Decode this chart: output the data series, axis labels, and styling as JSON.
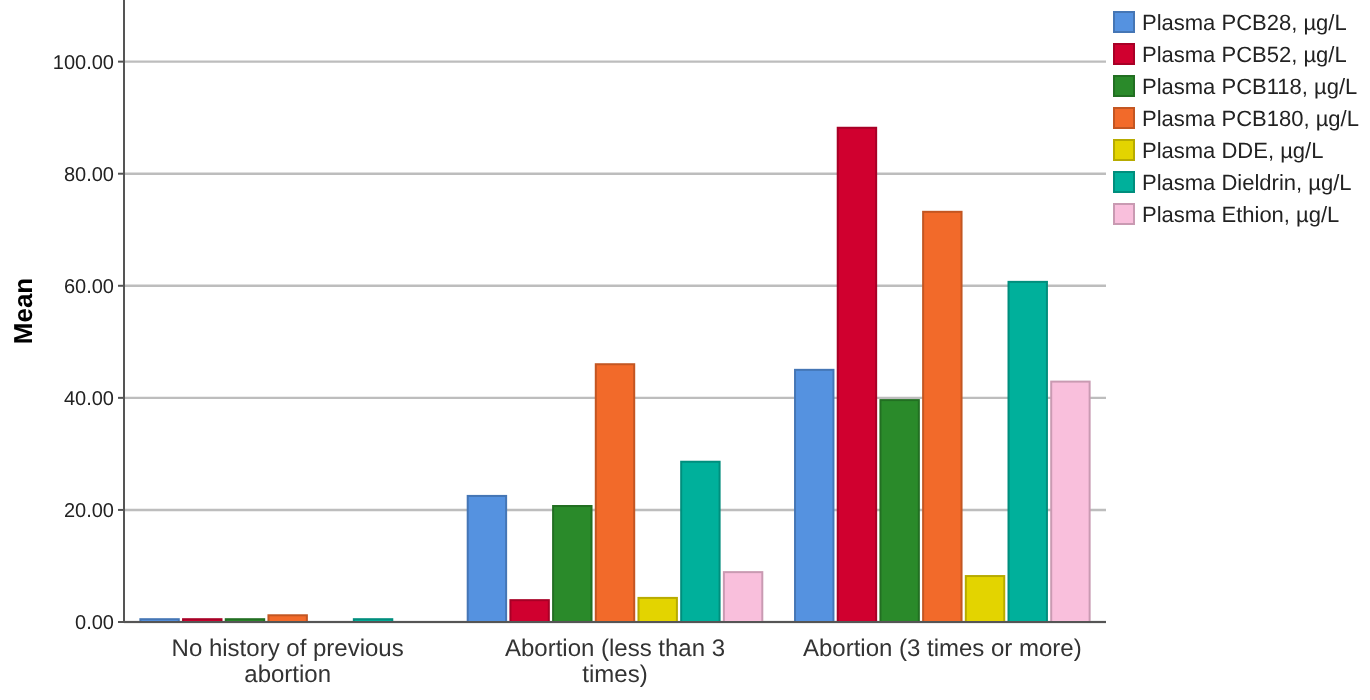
{
  "chart_data": {
    "type": "bar",
    "ylabel": "Mean",
    "categories": [
      "No history of previous abortion",
      "Abortion (less than 3 times)",
      "Abortion (3 times or more)"
    ],
    "series": [
      {
        "name": "Plasma PCB28, µg/L",
        "color": "#5592e0",
        "values": [
          0.5,
          22.5,
          45
        ]
      },
      {
        "name": "Plasma PCB52, µg/L",
        "color": "#d0002f",
        "values": [
          0.5,
          3.9,
          88.2
        ]
      },
      {
        "name": "Plasma PCB118, µg/L",
        "color": "#2a8a2a",
        "values": [
          0.5,
          20.7,
          39.6
        ]
      },
      {
        "name": "Plasma PCB180, µg/L",
        "color": "#f26a2a",
        "values": [
          1.2,
          46,
          73.2
        ]
      },
      {
        "name": "Plasma DDE, µg/L",
        "color": "#e3d400",
        "values": [
          0,
          4.3,
          8.2
        ]
      },
      {
        "name": "Plasma Dieldrin, µg/L",
        "color": "#00b09b",
        "values": [
          0.5,
          28.6,
          60.7
        ]
      },
      {
        "name": "Plasma Ethion, µg/L",
        "color": "#f9bfdc",
        "values": [
          0,
          8.9,
          42.9
        ]
      }
    ],
    "ylim": [
      0,
      111
    ],
    "yticks": [
      {
        "value": 0,
        "label": "0.00"
      },
      {
        "value": 20,
        "label": "20.00"
      },
      {
        "value": 40,
        "label": "40.00"
      },
      {
        "value": 60,
        "label": "60.00"
      },
      {
        "value": 80,
        "label": "80.00"
      },
      {
        "value": 100,
        "label": "100.00"
      }
    ],
    "grid": "y",
    "legend": "top right"
  }
}
